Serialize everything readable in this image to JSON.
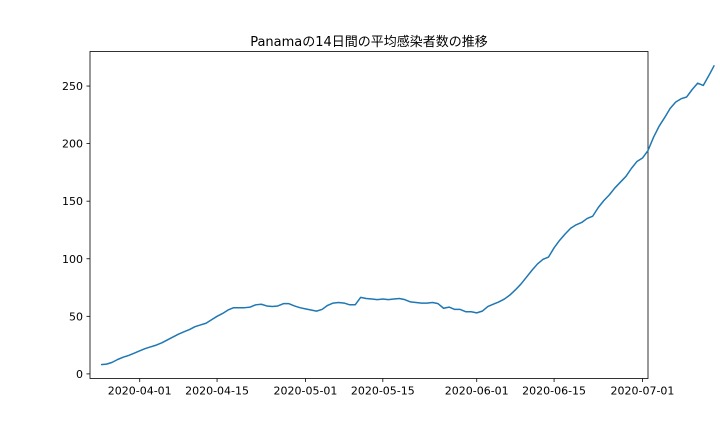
{
  "chart_data": {
    "type": "line",
    "title": "Panamaの14日間の平均感染者数の推移",
    "xlabel": "",
    "ylabel": "",
    "x_start": "2020-03-25",
    "x_step_days": 1,
    "xlim": [
      "2020-03-23",
      "2020-07-02"
    ],
    "ylim": [
      -4,
      280
    ],
    "x_ticks": [
      "2020-04-01",
      "2020-04-15",
      "2020-05-01",
      "2020-05-15",
      "2020-06-01",
      "2020-06-15",
      "2020-07-01"
    ],
    "y_ticks": [
      0,
      50,
      100,
      150,
      200,
      250
    ],
    "grid": false,
    "legend": "none",
    "line_color": "#1f77b4",
    "series": [
      {
        "values": [
          8,
          8.5,
          10,
          12.5,
          14.5,
          16,
          18,
          20,
          22,
          23.5,
          25,
          27,
          29.5,
          32,
          34.5,
          36.5,
          38.5,
          41,
          42.5,
          44,
          47,
          50,
          52.5,
          55.5,
          57.5,
          57.5,
          57.5,
          58,
          60,
          60.5,
          59,
          58.5,
          59,
          61,
          61,
          59,
          57.5,
          56.5,
          55.5,
          54.5,
          56,
          59.5,
          61.5,
          62,
          61.5,
          60,
          60,
          66.5,
          65.5,
          65,
          64.5,
          65,
          64.5,
          65,
          65.5,
          64.5,
          62.5,
          62,
          61.5,
          61.5,
          62,
          61,
          57,
          58,
          56,
          56,
          54,
          54,
          53,
          54.5,
          58.5,
          60.5,
          62.5,
          65,
          68.5,
          73,
          78,
          84,
          90,
          95.5,
          99.5,
          101.5,
          109.5,
          116,
          121.5,
          126.5,
          129.5,
          131.5,
          135,
          137,
          144.5,
          150.5,
          155.5,
          161.5,
          166.5,
          171.5,
          178.5,
          184.5,
          187.5,
          194,
          205.5,
          215,
          222.5,
          230.5,
          236,
          239,
          240.5,
          247,
          252.5,
          250.5,
          259,
          268
        ]
      }
    ]
  }
}
